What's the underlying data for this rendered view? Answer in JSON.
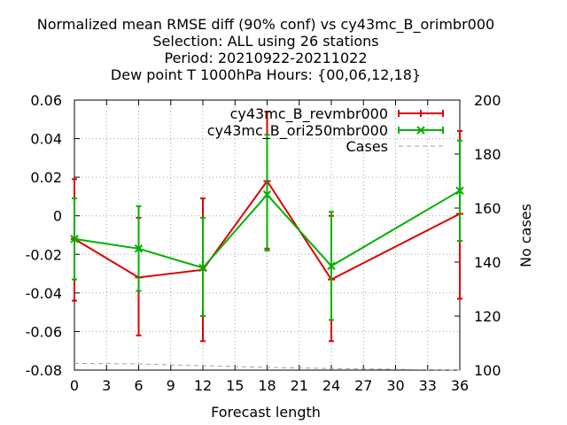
{
  "chart_data": {
    "type": "line",
    "title_lines": [
      "Normalized mean RMSE diff (90% conf) vs cy43mc_B_orimbr000",
      "Selection: ALL using    26 stations",
      "Period: 20210922-20211022",
      "Dew point T 1000hPa   Hours: {00,06,12,18}"
    ],
    "xlabel": "Forecast length",
    "ylabel": "",
    "y2label": "No cases",
    "xlim": [
      0,
      36
    ],
    "ylim": [
      -0.08,
      0.06
    ],
    "y2lim": [
      100,
      200
    ],
    "x_ticks": [
      0,
      3,
      6,
      9,
      12,
      15,
      18,
      21,
      24,
      27,
      30,
      33,
      36
    ],
    "y_ticks": [
      -0.08,
      -0.06,
      -0.04,
      -0.02,
      0,
      0.02,
      0.04,
      0.06
    ],
    "y_tick_labels": [
      "-0.08",
      "-0.06",
      "-0.04",
      "-0.02",
      "0",
      "0.02",
      "0.04",
      "0.06"
    ],
    "y2_ticks": [
      100,
      120,
      140,
      160,
      180,
      200
    ],
    "grid": true,
    "legend_position": "top-right",
    "series": [
      {
        "name": "cy43mc_B_revmbr000",
        "color": "#e00000",
        "marker": "plus",
        "x": [
          0,
          6,
          12,
          18,
          24,
          36
        ],
        "y": [
          -0.012,
          -0.032,
          -0.028,
          0.018,
          -0.033,
          0.001
        ],
        "err_low": [
          -0.044,
          -0.062,
          -0.065,
          -0.017,
          -0.065,
          -0.043
        ],
        "err_high": [
          0.019,
          -0.001,
          0.009,
          0.054,
          0.0,
          0.044
        ]
      },
      {
        "name": "cy43mc_B_ori250mbr000",
        "color": "#00b000",
        "marker": "cross",
        "x": [
          0,
          6,
          12,
          18,
          24,
          36
        ],
        "y": [
          -0.012,
          -0.017,
          -0.027,
          0.011,
          -0.026,
          0.013
        ],
        "err_low": [
          -0.033,
          -0.039,
          -0.052,
          -0.018,
          -0.054,
          -0.013
        ],
        "err_high": [
          0.009,
          0.005,
          -0.001,
          0.042,
          0.002,
          0.039
        ]
      },
      {
        "name": "Cases",
        "color": "#a0a0a0",
        "axis": "y2",
        "x": [
          0,
          6,
          12,
          18,
          24,
          36
        ],
        "y": [
          102.5,
          102.3,
          101.6,
          101.0,
          100.6,
          100.0
        ]
      }
    ]
  }
}
